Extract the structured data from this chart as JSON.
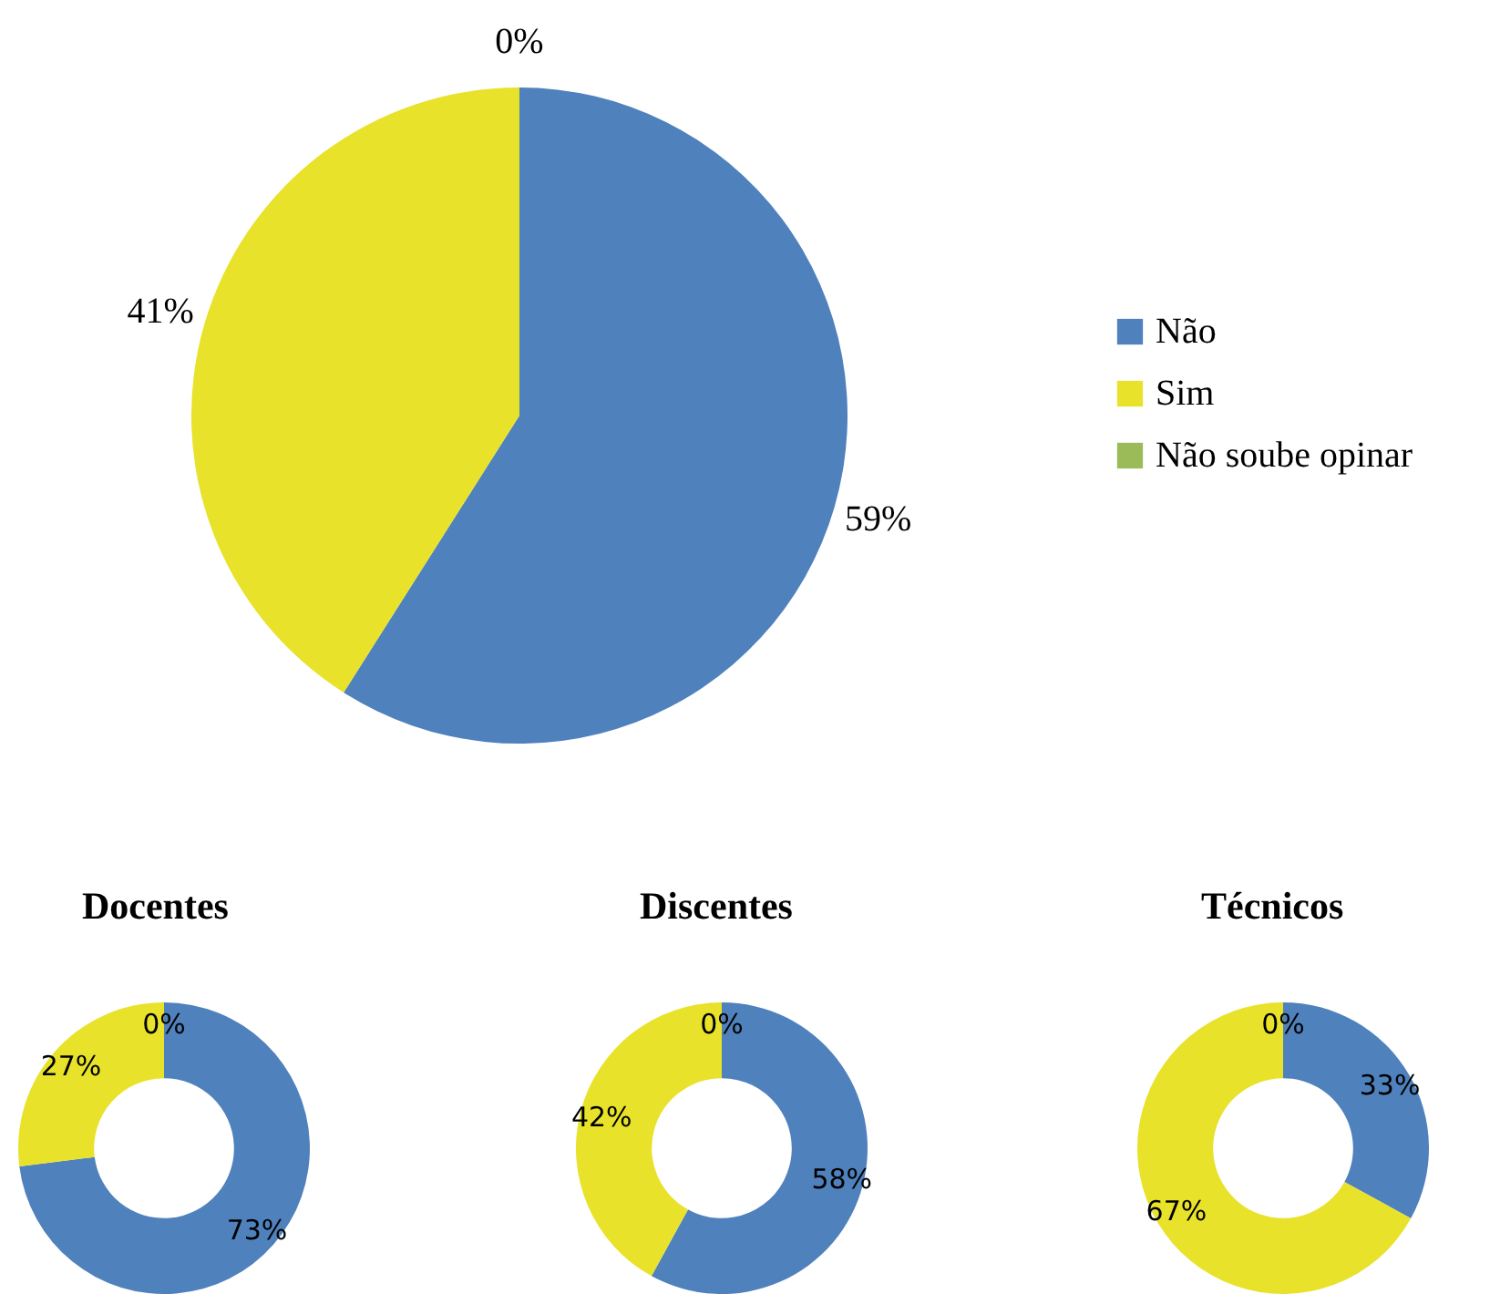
{
  "chart_data": [
    {
      "type": "pie",
      "categories": [
        "Não",
        "Sim",
        "Não soube opinar"
      ],
      "values": [
        59,
        41,
        0
      ],
      "colors": [
        "#4f81bd",
        "#e8e22a",
        "#9bbb59"
      ],
      "value_labels": [
        "59%",
        "41%",
        "0%"
      ],
      "legend": "right"
    },
    {
      "type": "donut",
      "title": "Docentes",
      "categories": [
        null,
        null,
        null
      ],
      "values": [
        73,
        27,
        0
      ],
      "colors": [
        "#4f81bd",
        "#e8e22a",
        "#9bbb59"
      ],
      "value_labels": [
        "73%",
        "27%",
        "0%"
      ]
    },
    {
      "type": "donut",
      "title": "Discentes",
      "categories": [
        null,
        null,
        null
      ],
      "values": [
        58,
        42,
        0
      ],
      "colors": [
        "#4f81bd",
        "#e8e22a",
        "#9bbb59"
      ],
      "value_labels": [
        "58%",
        "42%",
        "0%"
      ]
    },
    {
      "type": "donut",
      "title": "Técnicos",
      "categories": [
        null,
        null,
        null
      ],
      "values": [
        33,
        67,
        0
      ],
      "colors": [
        "#4f81bd",
        "#e8e22a",
        "#9bbb59"
      ],
      "value_labels": [
        "33%",
        "67%",
        "0%"
      ]
    }
  ]
}
